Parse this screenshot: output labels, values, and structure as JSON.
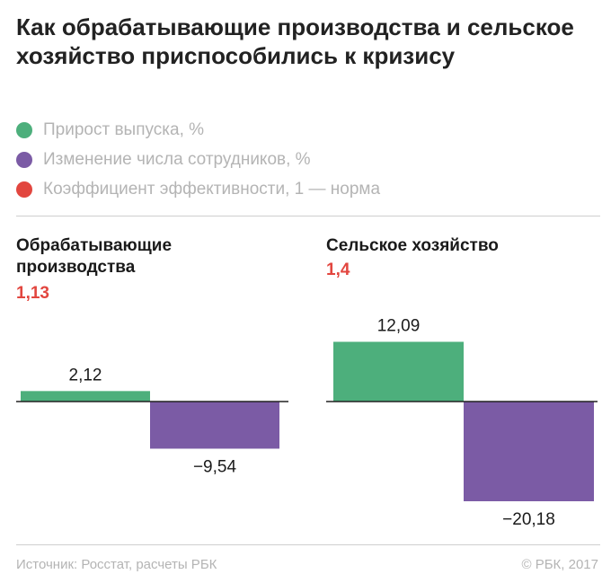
{
  "title": "Как обрабатывающие производства и сельское хозяйство приспособились к кризису",
  "legend": [
    {
      "label": "Прирост выпуска, %",
      "color": "#4daf7c"
    },
    {
      "label": "Изменение числа сотрудников, %",
      "color": "#7b5ba5"
    },
    {
      "label": "Коэффициент эффективности, 1 — норма",
      "color": "#e2463f"
    }
  ],
  "chart_data": [
    {
      "type": "bar",
      "title": "Обрабатывающие производства",
      "coefficient": "1,13",
      "categories": [
        "Прирост выпуска, %",
        "Изменение числа сотрудников, %"
      ],
      "values": [
        2.12,
        -9.54
      ],
      "labels": [
        "2,12",
        "−9,54"
      ],
      "colors": [
        "#4daf7c",
        "#7b5ba5"
      ]
    },
    {
      "type": "bar",
      "title": "Сельское хозяйство",
      "coefficient": "1,4",
      "categories": [
        "Прирост выпуска, %",
        "Изменение числа сотрудников, %"
      ],
      "values": [
        12.09,
        -20.18
      ],
      "labels": [
        "12,09",
        "−20,18"
      ],
      "colors": [
        "#4daf7c",
        "#7b5ba5"
      ]
    }
  ],
  "footer": {
    "source": "Источник: Росстат, расчеты РБК",
    "copyright": "© РБК, 2017"
  }
}
